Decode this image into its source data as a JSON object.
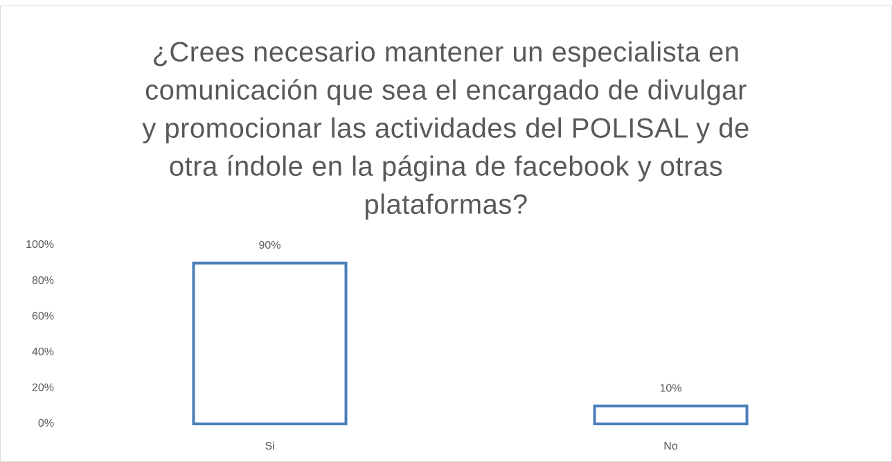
{
  "chart_data": {
    "type": "bar",
    "title": [
      "¿Crees necesario mantener un especialista en",
      "comunicación que sea el encargado de divulgar",
      "y promocionar las actividades del POLISAL y de",
      "otra índole en la página de facebook y otras",
      "plataformas?"
    ],
    "categories": [
      "Si",
      "No"
    ],
    "values": [
      90,
      10
    ],
    "value_labels": [
      "90%",
      "10%"
    ],
    "color": "#4a7ebb",
    "ylim": [
      0,
      100
    ],
    "yticks": [
      {
        "value": 0,
        "label": "0%"
      },
      {
        "value": 20,
        "label": "20%"
      },
      {
        "value": 40,
        "label": "40%"
      },
      {
        "value": 60,
        "label": "60%"
      },
      {
        "value": 80,
        "label": "80%"
      },
      {
        "value": 100,
        "label": "100%"
      }
    ],
    "grid": false
  }
}
